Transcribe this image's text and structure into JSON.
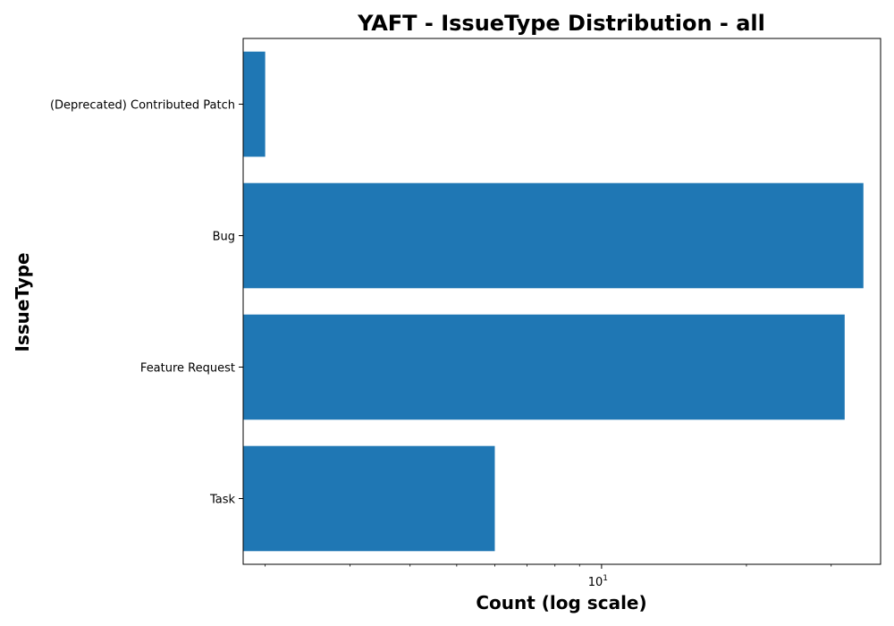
{
  "chart_data": {
    "type": "bar",
    "orientation": "horizontal",
    "title": "YAFT - IssueType Distribution - all",
    "xlabel": "Count (log scale)",
    "ylabel": "IssueType",
    "x_scale": "log",
    "xlim": [
      1.8,
      38
    ],
    "x_major_ticks": [
      {
        "value": 10,
        "base": "10",
        "exp": "1"
      }
    ],
    "x_minor_ticks": [
      2,
      3,
      4,
      5,
      6,
      7,
      8,
      9,
      20,
      30
    ],
    "categories": [
      "(Deprecated) Contributed Patch",
      "Bug",
      "Feature Request",
      "Task"
    ],
    "values": [
      2,
      35,
      32,
      6
    ],
    "bar_color": "#1f77b4",
    "grid": false,
    "legend": "none"
  }
}
